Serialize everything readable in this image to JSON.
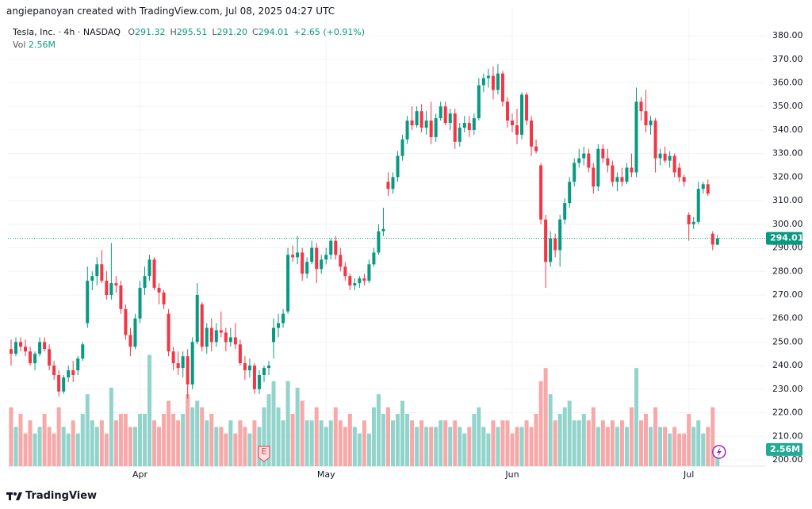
{
  "attribution": "angiepanoyan created with TradingView.com, Jul 08, 2025 04:27 UTC",
  "footer": "TradingView",
  "chart_data": {
    "type": "candlestick",
    "symbol": "Tesla, Inc. · 4h · NASDAQ",
    "legend_items": [
      "O",
      "291.32",
      "H",
      "295.51",
      "L",
      "291.20",
      "C",
      "294.01",
      "+2.65 (+0.91%)"
    ],
    "volume_name": "Vol",
    "last_volume_label": "2.56M",
    "earnings_marker": {
      "index": 53,
      "label": "E"
    },
    "up_color": "#089981",
    "down_color": "#f23645",
    "volume_up_color": "#92d3cb",
    "volume_down_color": "#f7a8a9",
    "grid": true,
    "xlim": [
      -0.66,
      158
    ],
    "xticks": [
      {
        "value": 27,
        "label": "Apr"
      },
      {
        "value": 66,
        "label": "May"
      },
      {
        "value": 105,
        "label": "Jun"
      },
      {
        "value": 142,
        "label": "Jul"
      }
    ],
    "ylim": [
      197.3,
      383.4
    ],
    "yticks": [
      {
        "value": 200,
        "label": "200.00"
      },
      {
        "value": 210,
        "label": "210.00"
      },
      {
        "value": 220,
        "label": "220.00"
      },
      {
        "value": 230,
        "label": "230.00"
      },
      {
        "value": 240,
        "label": "240.00"
      },
      {
        "value": 250,
        "label": "250.00"
      },
      {
        "value": 260,
        "label": "260.00"
      },
      {
        "value": 270,
        "label": "270.00"
      },
      {
        "value": 280,
        "label": "280.00"
      },
      {
        "value": 290,
        "label": "290.00"
      },
      {
        "value": 300,
        "label": "300.00"
      },
      {
        "value": 310,
        "label": "310.00"
      },
      {
        "value": 320,
        "label": "320.00"
      },
      {
        "value": 330,
        "label": "330.00"
      },
      {
        "value": 340,
        "label": "340.00"
      },
      {
        "value": 350,
        "label": "350.00"
      },
      {
        "value": 360,
        "label": "360.00"
      },
      {
        "value": 370,
        "label": "370.00"
      },
      {
        "value": 380,
        "label": "380.00"
      }
    ],
    "y2lim": [
      0,
      67
    ],
    "candles": [
      {
        "o": 247,
        "h": 251,
        "l": 240,
        "c": 245,
        "v": 9
      },
      {
        "o": 245,
        "h": 252,
        "l": 244,
        "c": 250,
        "v": 6
      },
      {
        "o": 250,
        "h": 252,
        "l": 246,
        "c": 248,
        "v": 8
      },
      {
        "o": 248,
        "h": 251,
        "l": 244,
        "c": 246,
        "v": 5
      },
      {
        "o": 246,
        "h": 248,
        "l": 240,
        "c": 241,
        "v": 7
      },
      {
        "o": 241,
        "h": 246,
        "l": 238,
        "c": 245,
        "v": 5
      },
      {
        "o": 245,
        "h": 252,
        "l": 244,
        "c": 250,
        "v": 6
      },
      {
        "o": 250,
        "h": 252,
        "l": 246,
        "c": 247,
        "v": 8
      },
      {
        "o": 247,
        "h": 249,
        "l": 238,
        "c": 240,
        "v": 6
      },
      {
        "o": 240,
        "h": 242,
        "l": 234,
        "c": 236,
        "v": 5
      },
      {
        "o": 236,
        "h": 238,
        "l": 227,
        "c": 229,
        "v": 9
      },
      {
        "o": 229,
        "h": 236,
        "l": 228,
        "c": 235,
        "v": 6
      },
      {
        "o": 235,
        "h": 240,
        "l": 233,
        "c": 238,
        "v": 5
      },
      {
        "o": 238,
        "h": 242,
        "l": 233,
        "c": 236,
        "v": 7
      },
      {
        "o": 238,
        "h": 244,
        "l": 236,
        "c": 243,
        "v": 5
      },
      {
        "o": 243,
        "h": 250,
        "l": 242,
        "c": 249,
        "v": 8
      },
      {
        "o": 258,
        "h": 282,
        "l": 256,
        "c": 276,
        "v": 11
      },
      {
        "o": 276,
        "h": 280,
        "l": 272,
        "c": 278,
        "v": 7
      },
      {
        "o": 278,
        "h": 286,
        "l": 274,
        "c": 283,
        "v": 6
      },
      {
        "o": 283,
        "h": 289,
        "l": 275,
        "c": 276,
        "v": 7
      },
      {
        "o": 276,
        "h": 280,
        "l": 268,
        "c": 270,
        "v": 5
      },
      {
        "o": 270,
        "h": 292,
        "l": 268,
        "c": 275,
        "v": 12
      },
      {
        "o": 275,
        "h": 278,
        "l": 271,
        "c": 274,
        "v": 7
      },
      {
        "o": 274,
        "h": 276,
        "l": 262,
        "c": 264,
        "v": 8
      },
      {
        "o": 264,
        "h": 266,
        "l": 251,
        "c": 253,
        "v": 8
      },
      {
        "o": 253,
        "h": 256,
        "l": 244,
        "c": 248,
        "v": 6
      },
      {
        "o": 248,
        "h": 262,
        "l": 247,
        "c": 260,
        "v": 6
      },
      {
        "o": 260,
        "h": 276,
        "l": 258,
        "c": 273,
        "v": 8
      },
      {
        "o": 273,
        "h": 282,
        "l": 270,
        "c": 278,
        "v": 8
      },
      {
        "o": 278,
        "h": 287,
        "l": 276,
        "c": 285,
        "v": 17
      },
      {
        "o": 285,
        "h": 286,
        "l": 272,
        "c": 273,
        "v": 7
      },
      {
        "o": 273,
        "h": 275,
        "l": 266,
        "c": 271,
        "v": 6
      },
      {
        "o": 271,
        "h": 272,
        "l": 264,
        "c": 266,
        "v": 8
      },
      {
        "o": 262,
        "h": 264,
        "l": 244,
        "c": 246,
        "v": 10
      },
      {
        "o": 246,
        "h": 248,
        "l": 238,
        "c": 241,
        "v": 8
      },
      {
        "o": 241,
        "h": 246,
        "l": 236,
        "c": 239,
        "v": 7
      },
      {
        "o": 239,
        "h": 246,
        "l": 235,
        "c": 244,
        "v": 8
      },
      {
        "o": 244,
        "h": 247,
        "l": 226,
        "c": 232,
        "v": 11
      },
      {
        "o": 232,
        "h": 252,
        "l": 230,
        "c": 250,
        "v": 9
      },
      {
        "o": 250,
        "h": 275,
        "l": 249,
        "c": 270,
        "v": 10
      },
      {
        "o": 266,
        "h": 267,
        "l": 246,
        "c": 248,
        "v": 9
      },
      {
        "o": 248,
        "h": 258,
        "l": 245,
        "c": 256,
        "v": 7
      },
      {
        "o": 256,
        "h": 260,
        "l": 246,
        "c": 250,
        "v": 8
      },
      {
        "o": 250,
        "h": 258,
        "l": 248,
        "c": 255,
        "v": 6
      },
      {
        "o": 255,
        "h": 263,
        "l": 252,
        "c": 254,
        "v": 6
      },
      {
        "o": 254,
        "h": 256,
        "l": 246,
        "c": 250,
        "v": 5
      },
      {
        "o": 250,
        "h": 256,
        "l": 248,
        "c": 252,
        "v": 7
      },
      {
        "o": 252,
        "h": 258,
        "l": 247,
        "c": 249,
        "v": 5
      },
      {
        "o": 249,
        "h": 251,
        "l": 240,
        "c": 241,
        "v": 7
      },
      {
        "o": 241,
        "h": 244,
        "l": 234,
        "c": 238,
        "v": 6
      },
      {
        "o": 238,
        "h": 243,
        "l": 235,
        "c": 240,
        "v": 5
      },
      {
        "o": 240,
        "h": 241,
        "l": 228,
        "c": 230,
        "v": 7
      },
      {
        "o": 230,
        "h": 238,
        "l": 228,
        "c": 236,
        "v": 6
      },
      {
        "o": 236,
        "h": 240,
        "l": 233,
        "c": 239,
        "v": 9
      },
      {
        "o": 239,
        "h": 242,
        "l": 236,
        "c": 240,
        "v": 11
      },
      {
        "o": 250,
        "h": 260,
        "l": 243,
        "c": 256,
        "v": 13
      },
      {
        "o": 256,
        "h": 262,
        "l": 252,
        "c": 258,
        "v": 9
      },
      {
        "o": 258,
        "h": 264,
        "l": 256,
        "c": 262,
        "v": 7
      },
      {
        "o": 263,
        "h": 290,
        "l": 262,
        "c": 287,
        "v": 13
      },
      {
        "o": 287,
        "h": 291,
        "l": 284,
        "c": 286,
        "v": 8
      },
      {
        "o": 286,
        "h": 295,
        "l": 283,
        "c": 288,
        "v": 12
      },
      {
        "o": 288,
        "h": 290,
        "l": 276,
        "c": 279,
        "v": 10
      },
      {
        "o": 279,
        "h": 286,
        "l": 277,
        "c": 284,
        "v": 7
      },
      {
        "o": 284,
        "h": 293,
        "l": 283,
        "c": 290,
        "v": 7
      },
      {
        "o": 290,
        "h": 292,
        "l": 275,
        "c": 281,
        "v": 9
      },
      {
        "o": 281,
        "h": 287,
        "l": 279,
        "c": 285,
        "v": 7
      },
      {
        "o": 285,
        "h": 290,
        "l": 283,
        "c": 287,
        "v": 6
      },
      {
        "o": 287,
        "h": 294,
        "l": 285,
        "c": 293,
        "v": 7
      },
      {
        "o": 293,
        "h": 295,
        "l": 285,
        "c": 287,
        "v": 9
      },
      {
        "o": 287,
        "h": 290,
        "l": 280,
        "c": 282,
        "v": 7
      },
      {
        "o": 282,
        "h": 284,
        "l": 276,
        "c": 278,
        "v": 6
      },
      {
        "o": 278,
        "h": 279,
        "l": 272,
        "c": 274,
        "v": 8
      },
      {
        "o": 274,
        "h": 277,
        "l": 272,
        "c": 275,
        "v": 6
      },
      {
        "o": 275,
        "h": 278,
        "l": 273,
        "c": 277,
        "v": 5
      },
      {
        "o": 277,
        "h": 279,
        "l": 274,
        "c": 276,
        "v": 7
      },
      {
        "o": 276,
        "h": 285,
        "l": 275,
        "c": 283,
        "v": 5
      },
      {
        "o": 283,
        "h": 290,
        "l": 282,
        "c": 288,
        "v": 9
      },
      {
        "o": 288,
        "h": 300,
        "l": 287,
        "c": 297,
        "v": 11
      },
      {
        "o": 297,
        "h": 307,
        "l": 295,
        "c": 298,
        "v": 8
      },
      {
        "o": 318,
        "h": 322,
        "l": 312,
        "c": 315,
        "v": 9
      },
      {
        "o": 315,
        "h": 322,
        "l": 313,
        "c": 320,
        "v": 7
      },
      {
        "o": 320,
        "h": 331,
        "l": 318,
        "c": 329,
        "v": 8
      },
      {
        "o": 329,
        "h": 338,
        "l": 327,
        "c": 336,
        "v": 10
      },
      {
        "o": 336,
        "h": 346,
        "l": 334,
        "c": 344,
        "v": 8
      },
      {
        "o": 344,
        "h": 350,
        "l": 340,
        "c": 342,
        "v": 7
      },
      {
        "o": 342,
        "h": 350,
        "l": 341,
        "c": 348,
        "v": 6
      },
      {
        "o": 348,
        "h": 351,
        "l": 339,
        "c": 341,
        "v": 7
      },
      {
        "o": 341,
        "h": 348,
        "l": 338,
        "c": 344,
        "v": 6
      },
      {
        "o": 344,
        "h": 352,
        "l": 334,
        "c": 337,
        "v": 6
      },
      {
        "o": 337,
        "h": 347,
        "l": 335,
        "c": 345,
        "v": 6
      },
      {
        "o": 345,
        "h": 352,
        "l": 344,
        "c": 350,
        "v": 7
      },
      {
        "o": 350,
        "h": 352,
        "l": 342,
        "c": 343,
        "v": 7
      },
      {
        "o": 343,
        "h": 349,
        "l": 340,
        "c": 347,
        "v": 6
      },
      {
        "o": 347,
        "h": 349,
        "l": 332,
        "c": 335,
        "v": 7
      },
      {
        "o": 335,
        "h": 343,
        "l": 333,
        "c": 341,
        "v": 6
      },
      {
        "o": 341,
        "h": 346,
        "l": 339,
        "c": 343,
        "v": 5
      },
      {
        "o": 343,
        "h": 346,
        "l": 337,
        "c": 340,
        "v": 6
      },
      {
        "o": 340,
        "h": 347,
        "l": 338,
        "c": 345,
        "v": 8
      },
      {
        "o": 345,
        "h": 362,
        "l": 344,
        "c": 359,
        "v": 9
      },
      {
        "o": 359,
        "h": 364,
        "l": 356,
        "c": 362,
        "v": 6
      },
      {
        "o": 362,
        "h": 366,
        "l": 358,
        "c": 363,
        "v": 5
      },
      {
        "o": 363,
        "h": 367,
        "l": 353,
        "c": 357,
        "v": 7
      },
      {
        "o": 357,
        "h": 368,
        "l": 355,
        "c": 364,
        "v": 6
      },
      {
        "o": 364,
        "h": 365,
        "l": 350,
        "c": 352,
        "v": 7
      },
      {
        "o": 352,
        "h": 354,
        "l": 341,
        "c": 344,
        "v": 7
      },
      {
        "o": 344,
        "h": 347,
        "l": 339,
        "c": 342,
        "v": 5
      },
      {
        "o": 342,
        "h": 349,
        "l": 334,
        "c": 338,
        "v": 6
      },
      {
        "o": 338,
        "h": 356,
        "l": 336,
        "c": 355,
        "v": 6
      },
      {
        "o": 355,
        "h": 356,
        "l": 342,
        "c": 344,
        "v": 7
      },
      {
        "o": 344,
        "h": 346,
        "l": 329,
        "c": 333,
        "v": 6
      },
      {
        "o": 333,
        "h": 336,
        "l": 330,
        "c": 331,
        "v": 8
      },
      {
        "o": 325,
        "h": 326,
        "l": 300,
        "c": 302,
        "v": 13
      },
      {
        "o": 302,
        "h": 304,
        "l": 273,
        "c": 284,
        "v": 15
      },
      {
        "o": 284,
        "h": 297,
        "l": 282,
        "c": 294,
        "v": 11
      },
      {
        "o": 294,
        "h": 296,
        "l": 286,
        "c": 289,
        "v": 7
      },
      {
        "o": 289,
        "h": 304,
        "l": 282,
        "c": 302,
        "v": 8
      },
      {
        "o": 302,
        "h": 311,
        "l": 300,
        "c": 309,
        "v": 9
      },
      {
        "o": 309,
        "h": 320,
        "l": 307,
        "c": 318,
        "v": 10
      },
      {
        "o": 318,
        "h": 328,
        "l": 316,
        "c": 326,
        "v": 7
      },
      {
        "o": 326,
        "h": 332,
        "l": 324,
        "c": 328,
        "v": 7
      },
      {
        "o": 328,
        "h": 333,
        "l": 325,
        "c": 330,
        "v": 8
      },
      {
        "o": 330,
        "h": 332,
        "l": 322,
        "c": 324,
        "v": 7
      },
      {
        "o": 324,
        "h": 326,
        "l": 313,
        "c": 316,
        "v": 9
      },
      {
        "o": 316,
        "h": 334,
        "l": 314,
        "c": 332,
        "v": 6
      },
      {
        "o": 332,
        "h": 334,
        "l": 326,
        "c": 328,
        "v": 7
      },
      {
        "o": 328,
        "h": 332,
        "l": 322,
        "c": 325,
        "v": 6
      },
      {
        "o": 325,
        "h": 327,
        "l": 316,
        "c": 318,
        "v": 7
      },
      {
        "o": 318,
        "h": 322,
        "l": 314,
        "c": 320,
        "v": 6
      },
      {
        "o": 320,
        "h": 324,
        "l": 316,
        "c": 318,
        "v": 7
      },
      {
        "o": 318,
        "h": 326,
        "l": 317,
        "c": 324,
        "v": 6
      },
      {
        "o": 324,
        "h": 330,
        "l": 320,
        "c": 322,
        "v": 9
      },
      {
        "o": 322,
        "h": 358,
        "l": 320,
        "c": 352,
        "v": 15
      },
      {
        "o": 352,
        "h": 354,
        "l": 344,
        "c": 348,
        "v": 7
      },
      {
        "o": 348,
        "h": 357,
        "l": 339,
        "c": 342,
        "v": 8
      },
      {
        "o": 342,
        "h": 346,
        "l": 338,
        "c": 344,
        "v": 6
      },
      {
        "o": 344,
        "h": 345,
        "l": 322,
        "c": 328,
        "v": 9
      },
      {
        "o": 328,
        "h": 332,
        "l": 325,
        "c": 330,
        "v": 6
      },
      {
        "o": 330,
        "h": 333,
        "l": 326,
        "c": 327,
        "v": 6
      },
      {
        "o": 327,
        "h": 331,
        "l": 324,
        "c": 329,
        "v": 5
      },
      {
        "o": 329,
        "h": 330,
        "l": 320,
        "c": 322,
        "v": 6
      },
      {
        "o": 324,
        "h": 326,
        "l": 318,
        "c": 320,
        "v": 5
      },
      {
        "o": 320,
        "h": 321,
        "l": 316,
        "c": 318,
        "v": 5
      },
      {
        "o": 304,
        "h": 305,
        "l": 293,
        "c": 300,
        "v": 8
      },
      {
        "o": 300,
        "h": 303,
        "l": 298,
        "c": 301,
        "v": 6
      },
      {
        "o": 301,
        "h": 318,
        "l": 300,
        "c": 315,
        "v": 7
      },
      {
        "o": 315,
        "h": 318,
        "l": 313,
        "c": 317,
        "v": 5
      },
      {
        "o": 317,
        "h": 319,
        "l": 312,
        "c": 313,
        "v": 6
      },
      {
        "o": 296,
        "h": 297,
        "l": 289,
        "c": 291.36,
        "v": 9
      },
      {
        "o": 291.32,
        "h": 295.51,
        "l": 291.2,
        "c": 294.01,
        "v": 2.56
      }
    ]
  }
}
